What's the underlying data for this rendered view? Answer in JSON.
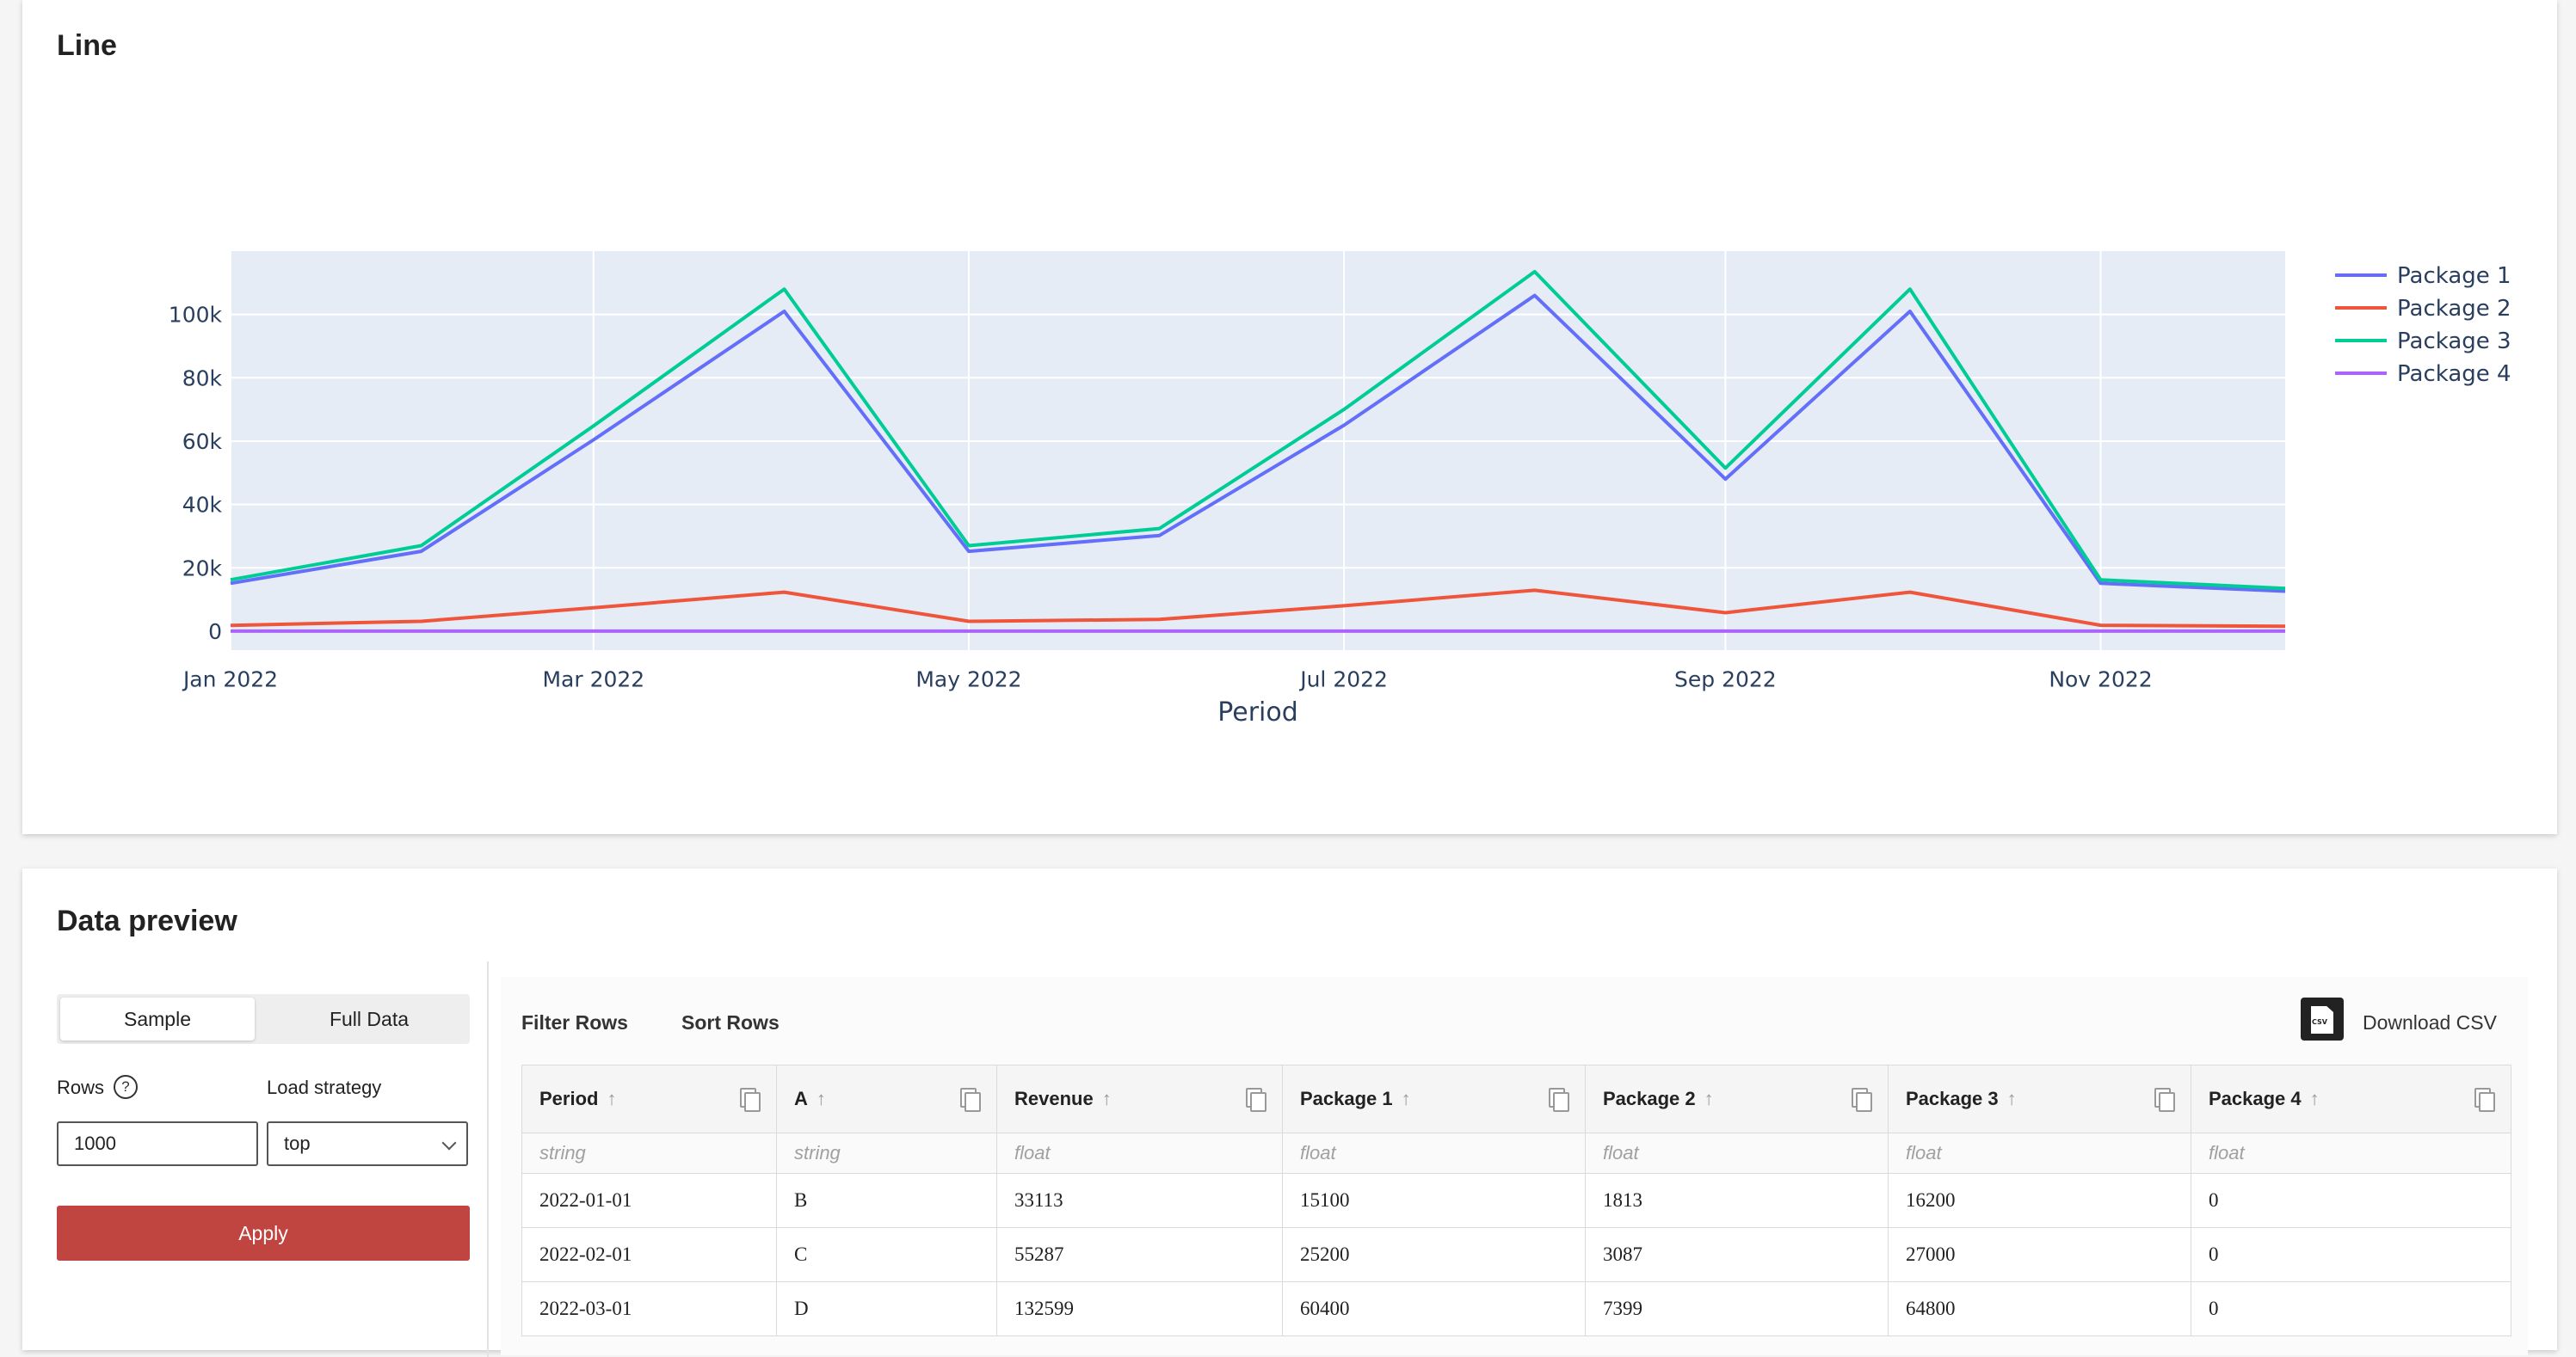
{
  "chart_section": {
    "title": "Line"
  },
  "chart_data": {
    "type": "line",
    "x": [
      "2022-01-01",
      "2022-02-01",
      "2022-03-01",
      "2022-04-01",
      "2022-05-01",
      "2022-06-01",
      "2022-07-01",
      "2022-08-01",
      "2022-09-01",
      "2022-10-01",
      "2022-11-01",
      "2022-12-01"
    ],
    "series": [
      {
        "name": "Package 1",
        "color": "#636efa",
        "values": [
          15100,
          25200,
          60400,
          101000,
          25200,
          30200,
          65000,
          106000,
          48000,
          101000,
          15100,
          12600
        ]
      },
      {
        "name": "Package 2",
        "color": "#ef553b",
        "values": [
          1813,
          3087,
          7399,
          12300,
          3100,
          3700,
          8000,
          12900,
          5800,
          12300,
          1850,
          1550
        ]
      },
      {
        "name": "Package 3",
        "color": "#00cc96",
        "values": [
          16200,
          27000,
          64800,
          108000,
          27000,
          32400,
          70000,
          113500,
          51500,
          108000,
          16200,
          13500
        ]
      },
      {
        "name": "Package 4",
        "color": "#ab63fa",
        "values": [
          0,
          0,
          0,
          0,
          0,
          0,
          0,
          0,
          0,
          0,
          0,
          0
        ]
      }
    ],
    "xlabel": "Period",
    "ylabel": "",
    "x_ticks": [
      {
        "date": "2022-01-01",
        "label": "Jan 2022"
      },
      {
        "date": "2022-03-01",
        "label": "Mar 2022"
      },
      {
        "date": "2022-05-01",
        "label": "May 2022"
      },
      {
        "date": "2022-07-01",
        "label": "Jul 2022"
      },
      {
        "date": "2022-09-01",
        "label": "Sep 2022"
      },
      {
        "date": "2022-11-01",
        "label": "Nov 2022"
      }
    ],
    "y_ticks": [
      {
        "value": 0,
        "label": "0"
      },
      {
        "value": 20000,
        "label": "20k"
      },
      {
        "value": 40000,
        "label": "40k"
      },
      {
        "value": 60000,
        "label": "60k"
      },
      {
        "value": 80000,
        "label": "80k"
      },
      {
        "value": 100000,
        "label": "100k"
      }
    ],
    "ylim": [
      -6000,
      120000
    ],
    "xlim": [
      "2022-01-01",
      "2022-12-01"
    ],
    "grid": true,
    "legend_position": "right"
  },
  "preview": {
    "title": "Data preview",
    "mode_tabs": [
      {
        "label": "Sample",
        "active": true
      },
      {
        "label": "Full Data",
        "active": false
      }
    ],
    "rows_label": "Rows",
    "help_icon": "?",
    "rows_value": "1000",
    "load_strategy_label": "Load strategy",
    "load_strategy_value": "top",
    "apply_label": "Apply",
    "filter_rows_label": "Filter Rows",
    "sort_rows_label": "Sort Rows",
    "csv_icon_tag": "CSV",
    "download_csv_label": "Download CSV"
  },
  "table": {
    "columns": [
      {
        "name": "Period",
        "type": "string"
      },
      {
        "name": "A",
        "type": "string"
      },
      {
        "name": "Revenue",
        "type": "float"
      },
      {
        "name": "Package 1",
        "type": "float"
      },
      {
        "name": "Package 2",
        "type": "float"
      },
      {
        "name": "Package 3",
        "type": "float"
      },
      {
        "name": "Package 4",
        "type": "float"
      }
    ],
    "rows": [
      [
        "2022-01-01",
        "B",
        "33113",
        "15100",
        "1813",
        "16200",
        "0"
      ],
      [
        "2022-02-01",
        "C",
        "55287",
        "25200",
        "3087",
        "27000",
        "0"
      ],
      [
        "2022-03-01",
        "D",
        "132599",
        "60400",
        "7399",
        "64800",
        "0"
      ]
    ]
  }
}
